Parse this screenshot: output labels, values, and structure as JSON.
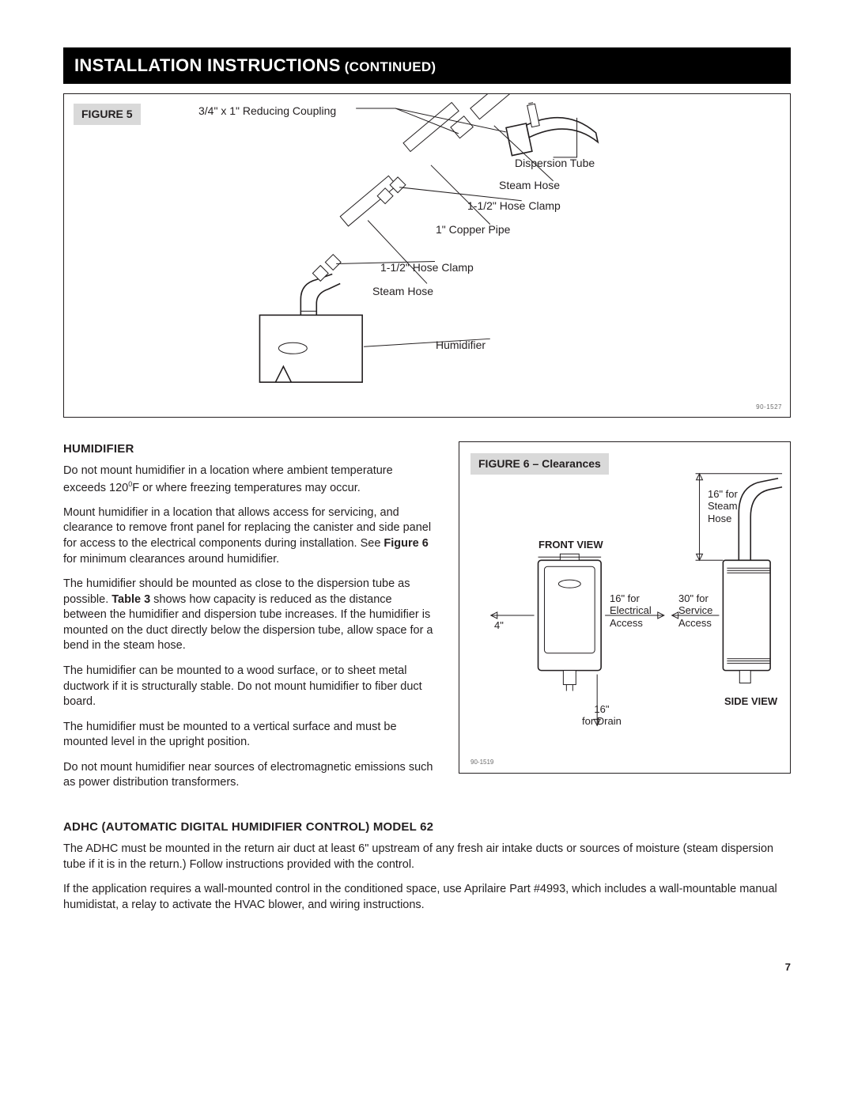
{
  "titlebar": {
    "main": "INSTALLATION INSTRUCTIONS",
    "cont": " (CONTINUED)"
  },
  "figure5": {
    "tag": "FIGURE 5",
    "partnum": "90-1527",
    "labels": {
      "reducing": "3/4\" x 1\" Reducing Coupling",
      "dispersion": "Dispersion Tube",
      "steamhose1": "Steam Hose",
      "clamp1": "1-1/2\" Hose Clamp",
      "copper": "1\" Copper Pipe",
      "clamp2": "1-1/2\" Hose Clamp",
      "steamhose2": "Steam Hose",
      "humidifier": "Humidifier"
    }
  },
  "humidifier": {
    "heading": "HUMIDIFIER",
    "p1a": "Do not mount humidifier in a location where ambient temperature exceeds 120",
    "p1b": "F or where freezing temperatures may occur.",
    "p2a": "Mount humidifier in a location that allows access for servicing, and clearance to remove front panel for replacing the canister and side panel for access to the electrical components during installation. See ",
    "p2b": "Figure 6",
    "p2c": " for minimum clearances around humidifier.",
    "p3a": "The humidifier should be mounted as close to the dispersion tube as possible. ",
    "p3b": "Table 3",
    "p3c": " shows how capacity is reduced as the distance between the humidifier and dispersion tube increases. If the humidifier is mounted on the duct directly below the dispersion tube, allow space for a bend in the steam hose.",
    "p4": "The humidifier can be mounted to a wood surface, or to sheet metal ductwork if it is structurally stable. Do not mount humidifier to fiber duct board.",
    "p5": "The humidifier must be mounted to a vertical surface and must be mounted level in the upright position.",
    "p6": "Do not mount humidifier near sources of electromagnetic emissions such as power distribution transformers."
  },
  "figure6": {
    "tag": "FIGURE 6 – Clearances",
    "partnum": "90-1519",
    "front_view": "FRONT VIEW",
    "side_view": "SIDE VIEW",
    "steam_hose": "16\" for\nSteam\nHose",
    "electrical": "16\" for\nElectrical\nAccess",
    "service": "30\" for\nService\nAccess",
    "four_inch": "4\"",
    "drain": "16\"\nfor Drain"
  },
  "adhc": {
    "heading": "ADHC (AUTOMATIC DIGITAL HUMIDIFIER CONTROL) MODEL 62",
    "p1": "The ADHC must be mounted in the return air duct at least 6\" upstream of any fresh air intake ducts or sources of moisture (steam dispersion tube if it is in the return.) Follow instructions provided with the control.",
    "p2": "If the application requires a wall-mounted control in the conditioned space, use Aprilaire Part #4993, which includes a wall-mountable manual humidistat, a relay to activate the HVAC blower, and wiring instructions."
  },
  "page": "7"
}
